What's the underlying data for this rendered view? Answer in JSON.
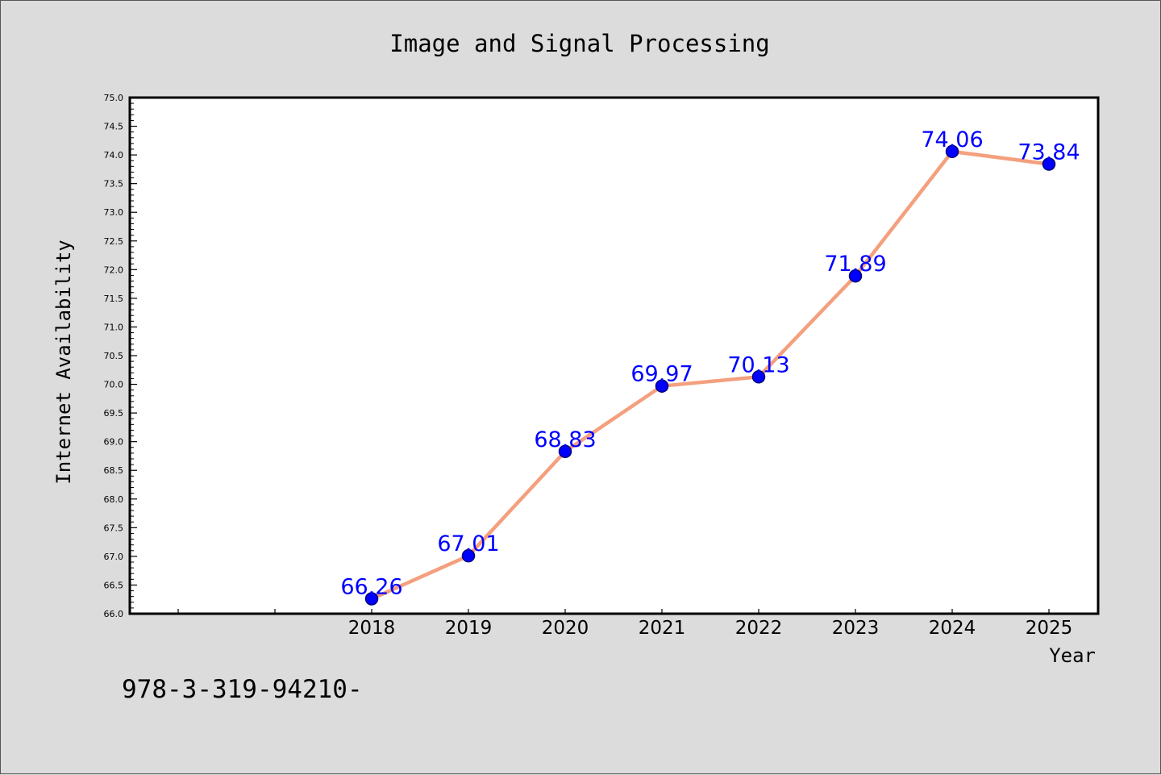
{
  "chart_data": {
    "type": "line",
    "title": "Image and Signal Processing",
    "xlabel": "Year",
    "ylabel": "Internet Availability",
    "categories": [
      "2018",
      "2019",
      "2020",
      "2021",
      "2022",
      "2023",
      "2024",
      "2025"
    ],
    "values": [
      66.26,
      67.01,
      68.83,
      69.97,
      70.13,
      71.89,
      74.06,
      73.84
    ],
    "data_labels": [
      "66.26",
      "67.01",
      "68.83",
      "69.97",
      "70.13",
      "71.89",
      "74.06",
      "73.84"
    ],
    "ylim": [
      66.0,
      75.0
    ],
    "yticks": [
      "66.0",
      "66.5",
      "67.0",
      "67.5",
      "68.0",
      "68.5",
      "69.0",
      "69.5",
      "70.0",
      "70.5",
      "71.0",
      "71.5",
      "72.0",
      "72.5",
      "73.0",
      "73.5",
      "74.0",
      "74.5",
      "75.0"
    ],
    "grid": false,
    "legend": "none",
    "colors": {
      "line": "#f4a07e",
      "marker": "#0000ff",
      "label": "#0000ff",
      "background": "#dcdcdc",
      "plot_background": "#ffffff"
    }
  },
  "footer_text": "978-3-319-94210-"
}
